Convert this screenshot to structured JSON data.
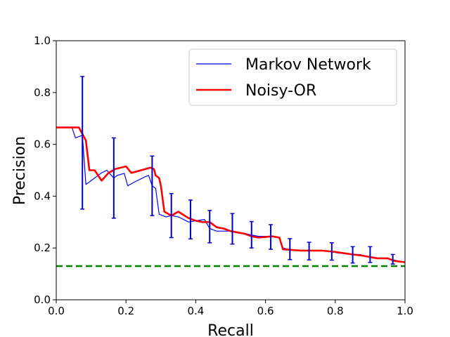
{
  "chart_data": {
    "type": "line",
    "title": "",
    "xlabel": "Recall",
    "ylabel": "Precision",
    "xlim": [
      0,
      1
    ],
    "ylim": [
      0,
      1
    ],
    "xticks": [
      "0.0",
      "0.2",
      "0.4",
      "0.6",
      "0.8",
      "1.0"
    ],
    "yticks": [
      "0.0",
      "0.2",
      "0.4",
      "0.6",
      "0.8",
      "1.0"
    ],
    "grid": false,
    "legend_position": "top-right",
    "series": [
      {
        "name": "Markov Network",
        "color": "#0000ff",
        "x": [
          0.0,
          0.045,
          0.055,
          0.075,
          0.085,
          0.13,
          0.145,
          0.165,
          0.175,
          0.195,
          0.205,
          0.225,
          0.255,
          0.265,
          0.275,
          0.285,
          0.295,
          0.315,
          0.33,
          0.35,
          0.365,
          0.38,
          0.4,
          0.425,
          0.44,
          0.46,
          0.475,
          0.5,
          0.52,
          0.545,
          0.56,
          0.58,
          0.61,
          0.64,
          0.65,
          0.665,
          0.7,
          0.72,
          0.75,
          0.77,
          0.79,
          0.81,
          0.85,
          0.87,
          0.9,
          0.92,
          0.95,
          0.965,
          0.98,
          1.0
        ],
        "y": [
          0.665,
          0.665,
          0.625,
          0.635,
          0.445,
          0.49,
          0.5,
          0.47,
          0.48,
          0.488,
          0.44,
          0.455,
          0.475,
          0.48,
          0.44,
          0.43,
          0.33,
          0.32,
          0.325,
          0.32,
          0.31,
          0.3,
          0.305,
          0.31,
          0.275,
          0.265,
          0.265,
          0.265,
          0.26,
          0.255,
          0.25,
          0.245,
          0.245,
          0.24,
          0.2,
          0.195,
          0.19,
          0.19,
          0.19,
          0.188,
          0.185,
          0.18,
          0.175,
          0.175,
          0.165,
          0.16,
          0.16,
          0.155,
          0.15,
          0.145
        ]
      },
      {
        "name": "Noisy-OR",
        "color": "#ff0000",
        "x": [
          0.0,
          0.065,
          0.075,
          0.085,
          0.095,
          0.11,
          0.13,
          0.15,
          0.17,
          0.2,
          0.215,
          0.23,
          0.27,
          0.28,
          0.285,
          0.295,
          0.3,
          0.31,
          0.33,
          0.35,
          0.38,
          0.4,
          0.42,
          0.44,
          0.46,
          0.48,
          0.5,
          0.52,
          0.54,
          0.56,
          0.58,
          0.62,
          0.64,
          0.65,
          0.7,
          0.72,
          0.76,
          0.8,
          0.85,
          0.88,
          0.9,
          0.92,
          0.95,
          0.97,
          1.0
        ],
        "y": [
          0.665,
          0.665,
          0.64,
          0.615,
          0.5,
          0.5,
          0.46,
          0.49,
          0.505,
          0.515,
          0.49,
          0.495,
          0.51,
          0.505,
          0.48,
          0.47,
          0.44,
          0.34,
          0.325,
          0.34,
          0.315,
          0.305,
          0.3,
          0.3,
          0.28,
          0.275,
          0.265,
          0.26,
          0.255,
          0.245,
          0.24,
          0.245,
          0.24,
          0.195,
          0.19,
          0.19,
          0.19,
          0.185,
          0.175,
          0.17,
          0.165,
          0.16,
          0.16,
          0.15,
          0.145
        ]
      }
    ],
    "error_bars": {
      "color": "#0000cc",
      "points": [
        {
          "x": 0.075,
          "y": 0.605,
          "low": 0.35,
          "high": 0.862
        },
        {
          "x": 0.165,
          "y": 0.47,
          "low": 0.315,
          "high": 0.625
        },
        {
          "x": 0.275,
          "y": 0.44,
          "low": 0.325,
          "high": 0.555
        },
        {
          "x": 0.33,
          "y": 0.325,
          "low": 0.24,
          "high": 0.41
        },
        {
          "x": 0.385,
          "y": 0.31,
          "low": 0.235,
          "high": 0.385
        },
        {
          "x": 0.44,
          "y": 0.282,
          "low": 0.22,
          "high": 0.345
        },
        {
          "x": 0.505,
          "y": 0.274,
          "low": 0.215,
          "high": 0.333
        },
        {
          "x": 0.56,
          "y": 0.25,
          "low": 0.2,
          "high": 0.302
        },
        {
          "x": 0.615,
          "y": 0.242,
          "low": 0.195,
          "high": 0.29
        },
        {
          "x": 0.67,
          "y": 0.195,
          "low": 0.155,
          "high": 0.236
        },
        {
          "x": 0.725,
          "y": 0.188,
          "low": 0.154,
          "high": 0.222
        },
        {
          "x": 0.79,
          "y": 0.187,
          "low": 0.153,
          "high": 0.22
        },
        {
          "x": 0.85,
          "y": 0.174,
          "low": 0.142,
          "high": 0.205
        },
        {
          "x": 0.9,
          "y": 0.174,
          "low": 0.144,
          "high": 0.205
        },
        {
          "x": 0.965,
          "y": 0.155,
          "low": 0.138,
          "high": 0.175
        }
      ]
    },
    "baseline": {
      "y": 0.13,
      "color": "#008000",
      "style": "dashed"
    }
  }
}
